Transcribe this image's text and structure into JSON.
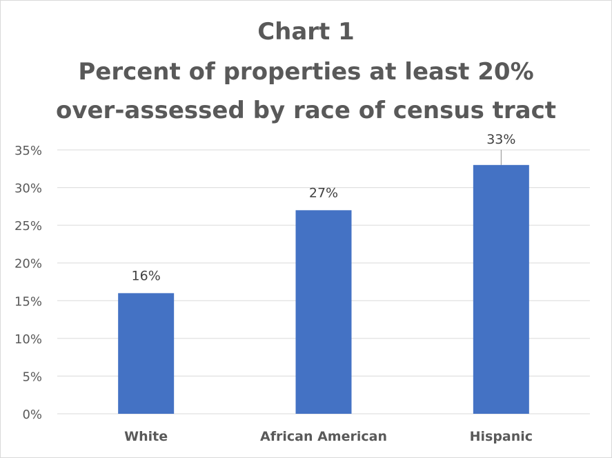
{
  "chart_data": {
    "type": "bar",
    "title_lines": [
      "Chart 1",
      "Percent of properties at least 20%",
      "over-assessed by race of census tract"
    ],
    "categories": [
      "White",
      "African American",
      "Hispanic"
    ],
    "values": [
      16,
      27,
      33
    ],
    "data_labels": [
      "16%",
      "27%",
      "33%"
    ],
    "y_ticks": [
      "0%",
      "5%",
      "10%",
      "15%",
      "20%",
      "25%",
      "30%",
      "35%"
    ],
    "ylim": [
      0,
      35
    ],
    "y_step": 5,
    "grid": true,
    "legend": "none",
    "bar_color": "#4472c4",
    "gridline_color": "#d9d9d9",
    "label_color": "#404040"
  }
}
